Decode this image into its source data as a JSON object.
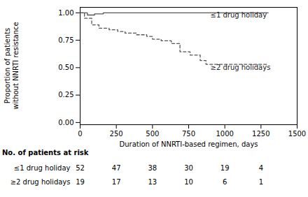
{
  "chart_data": {
    "type": "step",
    "xlabel": "Duration of NNRTI-based regimen, days",
    "ylabel": "Proportion of patients\nwithout NNRTI resistance",
    "xlim": [
      0,
      1500
    ],
    "ylim": [
      -0.02,
      1.05
    ],
    "xticks": [
      0,
      250,
      500,
      750,
      1000,
      1250,
      1500
    ],
    "yticks": [
      {
        "value": 0.0,
        "label": "0.00"
      },
      {
        "value": 0.25,
        "label": "0.25"
      },
      {
        "value": 0.5,
        "label": "0.50"
      },
      {
        "value": 0.75,
        "label": "0.75"
      },
      {
        "value": 1.0,
        "label": "1.00"
      }
    ],
    "grid": false,
    "series": [
      {
        "name": "≤1 drug holiday",
        "color": "#555555",
        "line_style": "solid",
        "x": [
          0,
          50,
          50,
          100,
          100,
          160,
          160,
          480,
          480,
          1300
        ],
        "values": [
          1.0,
          1.0,
          0.98,
          0.98,
          0.99,
          0.99,
          1.0,
          1.0,
          1.0,
          1.0
        ]
      },
      {
        "name": "≥2 drug holidays",
        "color": "#555555",
        "line_style": "dashed",
        "x": [
          0,
          30,
          30,
          80,
          80,
          130,
          130,
          200,
          200,
          260,
          260,
          310,
          310,
          390,
          390,
          460,
          460,
          500,
          500,
          560,
          560,
          630,
          630,
          690,
          690,
          760,
          760,
          830,
          830,
          870,
          870,
          1300
        ],
        "values": [
          1.0,
          1.0,
          0.95,
          0.95,
          0.89,
          0.89,
          0.86,
          0.86,
          0.845,
          0.845,
          0.83,
          0.83,
          0.815,
          0.815,
          0.8,
          0.8,
          0.785,
          0.785,
          0.76,
          0.76,
          0.745,
          0.745,
          0.72,
          0.72,
          0.645,
          0.645,
          0.615,
          0.615,
          0.565,
          0.565,
          0.53,
          0.53
        ]
      }
    ],
    "annotations": [
      {
        "text": "≤1 drug holiday",
        "x": 900,
        "y": 0.975
      },
      {
        "text": "≥2 drug holidays",
        "x": 900,
        "y": 0.5
      }
    ],
    "risk_table": {
      "title": "No. of patients at risk",
      "x": [
        0,
        250,
        500,
        750,
        1000,
        1250
      ],
      "rows": [
        {
          "name": "≤1 drug holiday",
          "values": [
            52,
            47,
            38,
            30,
            19,
            4
          ]
        },
        {
          "name": "≥2 drug holidays",
          "values": [
            19,
            17,
            13,
            10,
            6,
            1
          ]
        }
      ]
    }
  }
}
